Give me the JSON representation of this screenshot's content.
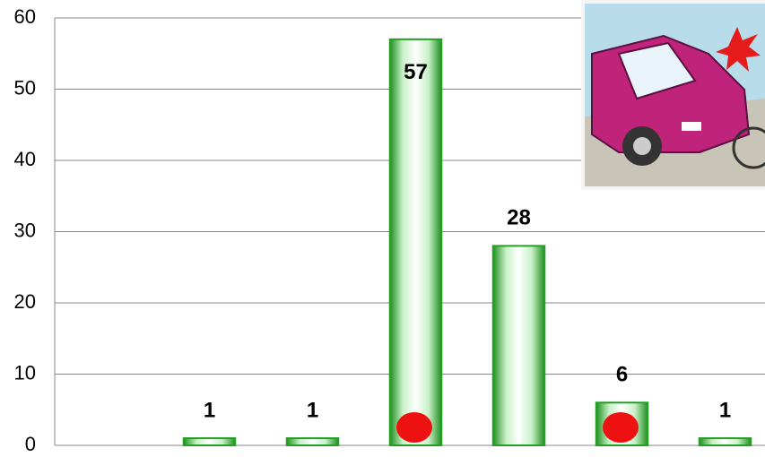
{
  "chart_data": {
    "type": "bar",
    "categories": [
      null,
      null,
      null,
      null,
      null,
      null,
      null
    ],
    "values": [
      null,
      1,
      1,
      57,
      28,
      6,
      1
    ],
    "color": "#22a022",
    "ylim": [
      0,
      60
    ],
    "yticks": [
      0,
      10,
      20,
      30,
      40,
      50,
      60
    ],
    "grid": true
  }
}
